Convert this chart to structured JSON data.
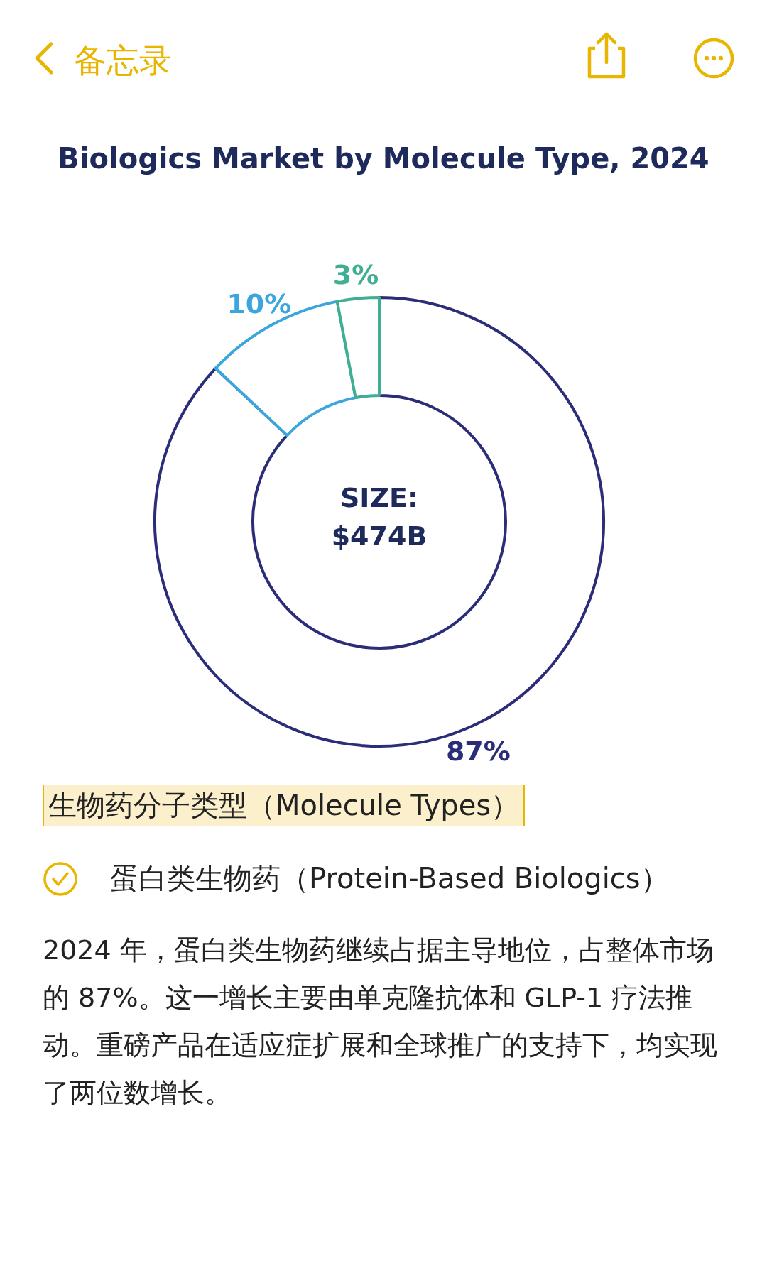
{
  "chart_data": {
    "type": "donut",
    "title": "Biologics Market by Molecule Type, 2024",
    "categories": [
      null,
      null,
      null
    ],
    "values": [
      87,
      10,
      3
    ],
    "colors": [
      "#2b2d78",
      "#3aa6dd",
      "#3fae94"
    ],
    "value_labels": [
      "87%",
      "10%",
      "3%"
    ],
    "annotations": [
      "SIZE:\n$474B",
      "备忘录",
      "生物药分子类型（Molecule Types）",
      "蛋白类生物药（Protein-Based Biologics）",
      "2024 年，蛋白类生物药继续占据主导地位，占整体市场的 87%。这一增长主要由单克隆抗体和 GLP-1 疗法推动。重磅产品在适应症扩展和全球推广的支持下，均实现了两位数增长。"
    ]
  }
}
